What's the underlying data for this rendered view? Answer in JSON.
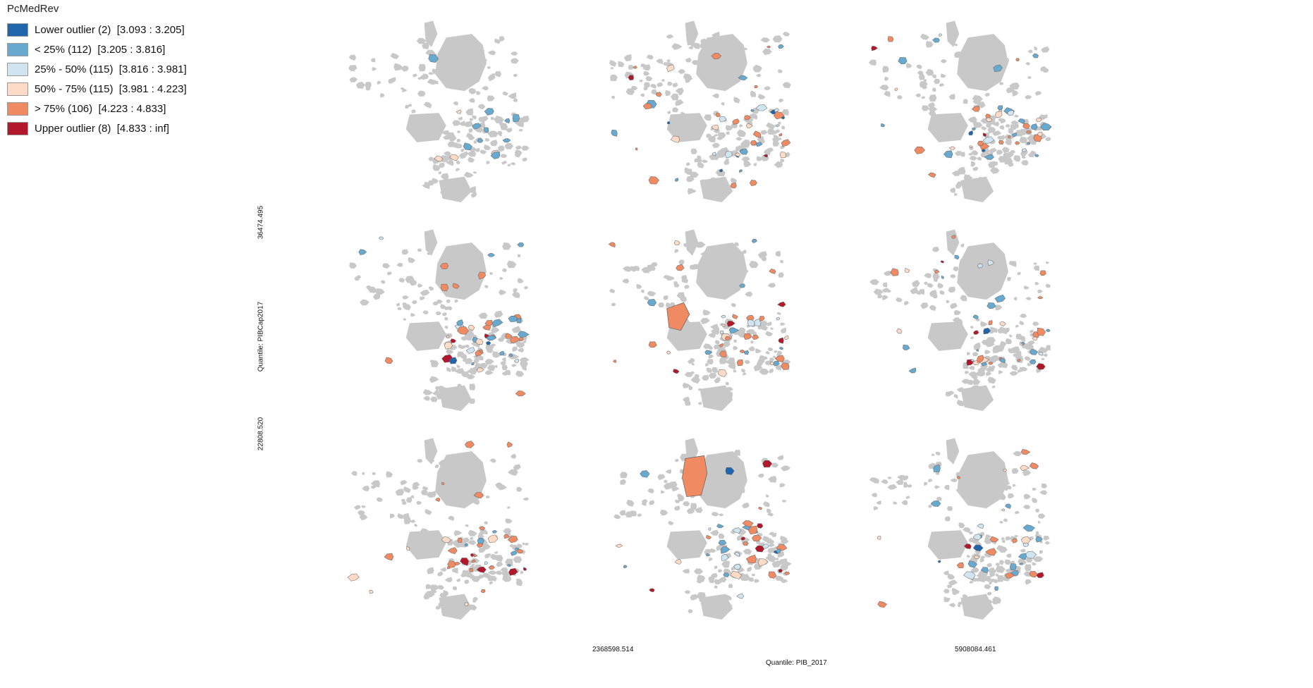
{
  "legend": {
    "title": "PcMedRev",
    "items": [
      {
        "label": "Lower outlier (2)  [3.093 : 3.205]",
        "color": "#2166ac"
      },
      {
        "label": "< 25% (112)  [3.205 : 3.816]",
        "color": "#67a9cf"
      },
      {
        "label": "25% - 50% (115)  [3.816 : 3.981]",
        "color": "#d1e5f0"
      },
      {
        "label": "50% - 75% (115)  [3.981 : 4.223]",
        "color": "#fddbc7"
      },
      {
        "label": "> 75% (106)  [4.223 : 4.833]",
        "color": "#ef8a62"
      },
      {
        "label": "Upper outlier (8)  [4.833 : inf]",
        "color": "#b2182b"
      }
    ]
  },
  "axes": {
    "y_title": "Quantile: PIBCap2017",
    "y_ticks": [
      "36474.495",
      "22808.520"
    ],
    "x_title": "Quantile: PIB_2017",
    "x_ticks": [
      "2368598.514",
      "5908084.461"
    ]
  },
  "map_style": {
    "base_color": "#c8c8c8",
    "border_color": "#666666"
  },
  "panels": [
    {
      "row": 1,
      "col": 1,
      "dominant": "none"
    },
    {
      "row": 1,
      "col": 2,
      "dominant": "mixed"
    },
    {
      "row": 1,
      "col": 3,
      "dominant": "mixed"
    },
    {
      "row": 2,
      "col": 1,
      "dominant": "mixed"
    },
    {
      "row": 2,
      "col": 2,
      "dominant": "mixed"
    },
    {
      "row": 2,
      "col": 3,
      "dominant": "mixed"
    },
    {
      "row": 3,
      "col": 1,
      "dominant": "mixed"
    },
    {
      "row": 3,
      "col": 2,
      "dominant": "mixed"
    },
    {
      "row": 3,
      "col": 3,
      "dominant": "mixed"
    }
  ]
}
